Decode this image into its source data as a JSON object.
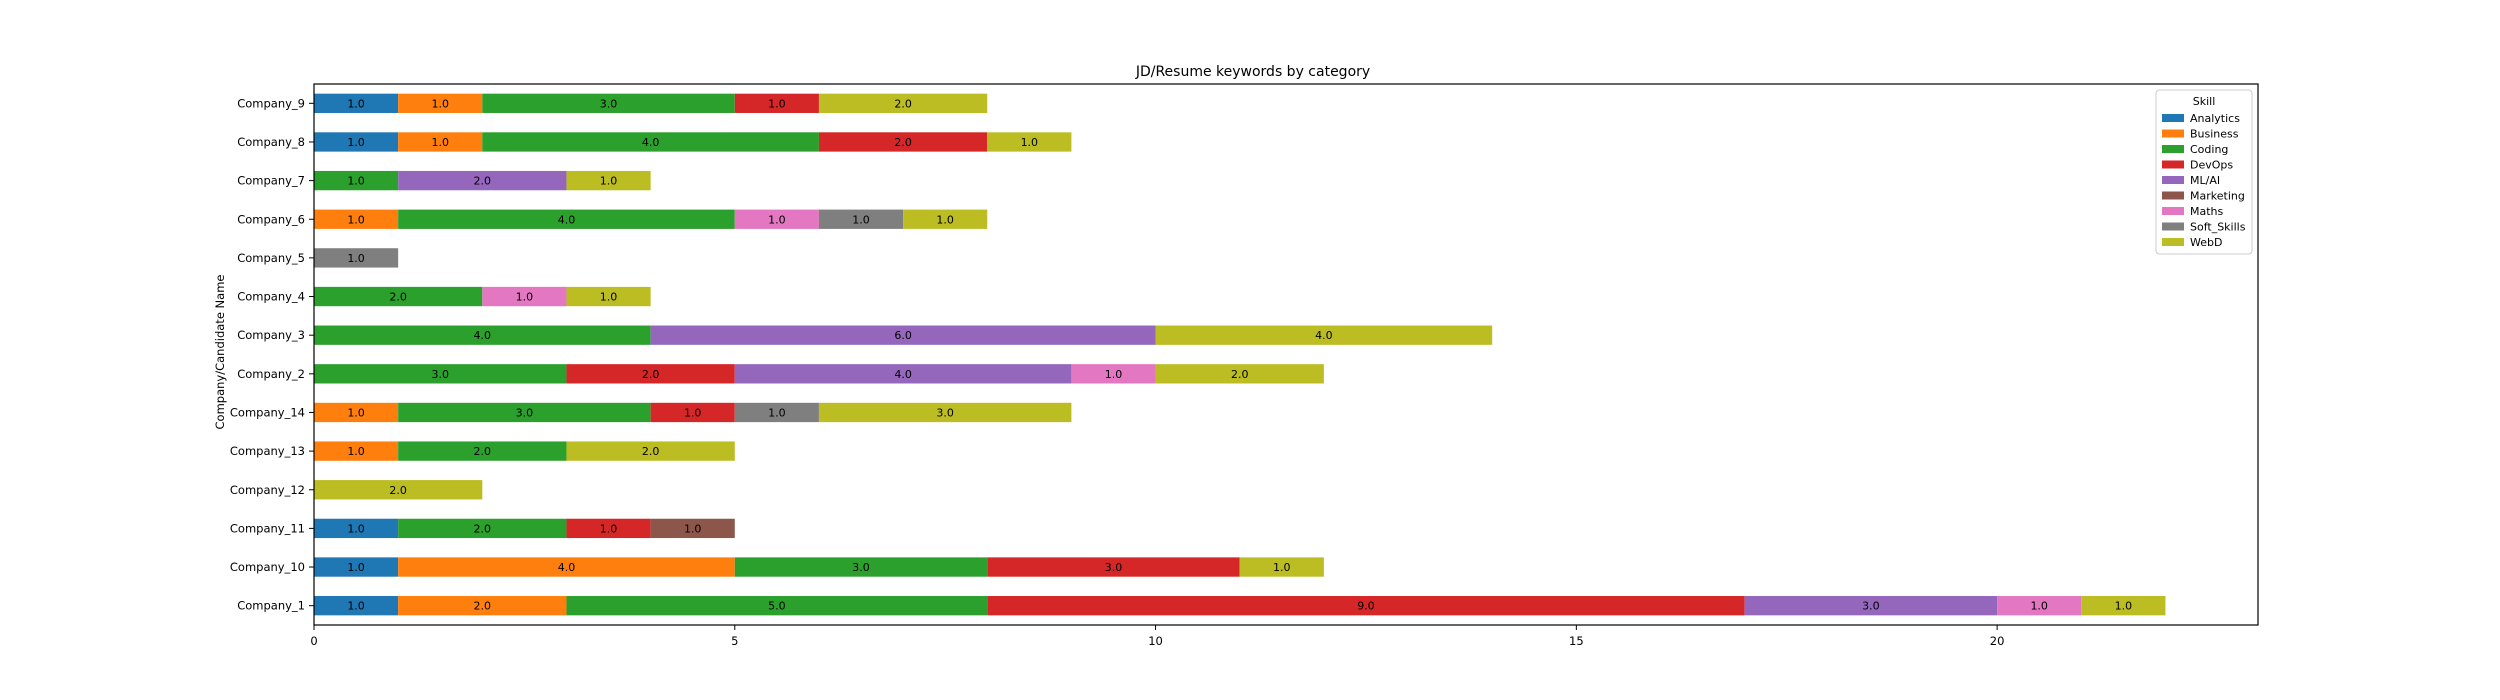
{
  "chart_data": {
    "type": "bar",
    "orientation": "horizontal",
    "stacked": true,
    "title": "JD/Resume keywords by category",
    "xlabel": "",
    "ylabel": "Company/Candidate Name",
    "xlim": [
      0,
      23.1
    ],
    "xticks": [
      0,
      5,
      10,
      15,
      20
    ],
    "grid": false,
    "legend": {
      "title": "Skill",
      "placement": "upper right"
    },
    "categories": [
      "Company_1",
      "Company_10",
      "Company_11",
      "Company_12",
      "Company_13",
      "Company_14",
      "Company_2",
      "Company_3",
      "Company_4",
      "Company_5",
      "Company_6",
      "Company_7",
      "Company_8",
      "Company_9"
    ],
    "series": [
      {
        "name": "Analytics",
        "color": "#1f77b4",
        "values": [
          1,
          1,
          1,
          0,
          0,
          0,
          0,
          0,
          0,
          0,
          0,
          0,
          1,
          1
        ]
      },
      {
        "name": "Business",
        "color": "#ff7f0e",
        "values": [
          2,
          4,
          0,
          0,
          1,
          1,
          0,
          0,
          0,
          0,
          1,
          0,
          1,
          1
        ]
      },
      {
        "name": "Coding",
        "color": "#2ca02c",
        "values": [
          5,
          3,
          2,
          0,
          2,
          3,
          3,
          4,
          2,
          0,
          4,
          1,
          4,
          3
        ]
      },
      {
        "name": "DevOps",
        "color": "#d62728",
        "values": [
          9,
          3,
          1,
          0,
          0,
          1,
          2,
          0,
          0,
          0,
          0,
          0,
          2,
          1
        ]
      },
      {
        "name": "ML/AI",
        "color": "#9467bd",
        "values": [
          3,
          0,
          0,
          0,
          0,
          0,
          4,
          6,
          0,
          0,
          0,
          2,
          0,
          0
        ]
      },
      {
        "name": "Marketing",
        "color": "#8c564b",
        "values": [
          0,
          0,
          1,
          0,
          0,
          0,
          0,
          0,
          0,
          0,
          0,
          0,
          0,
          0
        ]
      },
      {
        "name": "Maths",
        "color": "#e377c2",
        "values": [
          1,
          0,
          0,
          0,
          0,
          0,
          1,
          0,
          1,
          0,
          1,
          0,
          0,
          0
        ]
      },
      {
        "name": "Soft_Skills",
        "color": "#7f7f7f",
        "values": [
          0,
          0,
          0,
          0,
          0,
          1,
          0,
          0,
          0,
          1,
          1,
          0,
          0,
          0
        ]
      },
      {
        "name": "WebD",
        "color": "#bcbd22",
        "values": [
          1,
          1,
          0,
          2,
          2,
          3,
          2,
          4,
          1,
          0,
          1,
          1,
          1,
          2
        ]
      }
    ]
  }
}
